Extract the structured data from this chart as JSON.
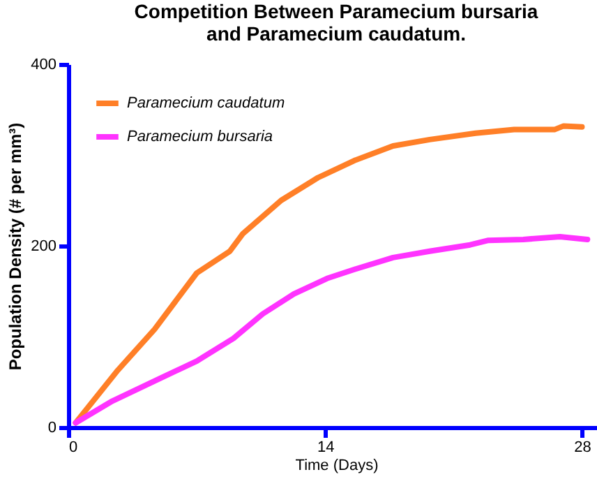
{
  "chart_data": {
    "type": "line",
    "title": "Competition Between Paramecium bursaria and Paramecium caudatum.",
    "xlabel": "Time (Days)",
    "ylabel": "Population Density (# per mm³)",
    "xlim": [
      0,
      29.2
    ],
    "xticks": [
      0,
      14,
      28
    ],
    "ylim": [
      0,
      400
    ],
    "yticks": [
      0,
      200,
      400
    ],
    "grid": false,
    "legend": "top left",
    "line_style": "solid",
    "marker": "none",
    "series": [
      {
        "name": "Paramecium caudatum",
        "color": "#ff7f27",
        "x": [
          0.4,
          2.7,
          4.7,
          7.0,
          8.8,
          9.5,
          11.6,
          13.6,
          15.6,
          17.7,
          19.7,
          22.2,
          24.3,
          26.5,
          27.0,
          28.0
        ],
        "values": [
          5,
          63,
          108,
          170,
          194,
          213,
          250,
          275,
          294,
          310,
          317,
          324,
          328,
          328,
          332,
          331
        ]
      },
      {
        "name": "Paramecium bursaria",
        "color": "#ff33ff",
        "x": [
          0.4,
          2.4,
          5.0,
          7.0,
          9.0,
          10.6,
          12.3,
          14.1,
          15.6,
          17.7,
          19.7,
          21.9,
          22.9,
          24.8,
          26.8,
          28.3
        ],
        "values": [
          5,
          29,
          54,
          73,
          98,
          125,
          147,
          164,
          174,
          187,
          194,
          201,
          206,
          207,
          210,
          207
        ]
      }
    ]
  }
}
